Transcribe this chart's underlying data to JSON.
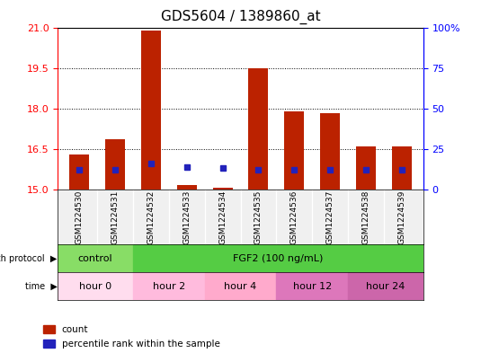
{
  "title": "GDS5604 / 1389860_at",
  "samples": [
    "GSM1224530",
    "GSM1224531",
    "GSM1224532",
    "GSM1224533",
    "GSM1224534",
    "GSM1224535",
    "GSM1224536",
    "GSM1224537",
    "GSM1224538",
    "GSM1224539"
  ],
  "count_values": [
    16.3,
    16.85,
    20.9,
    15.15,
    15.05,
    19.5,
    17.9,
    17.85,
    16.6,
    16.6
  ],
  "percentile_values": [
    15.2,
    15.2,
    15.55,
    15.45,
    15.4,
    15.25,
    15.2,
    15.25,
    15.2,
    15.2
  ],
  "blue_square_pct": [
    12,
    12,
    16,
    14,
    13,
    12,
    12,
    12,
    12,
    12
  ],
  "ylim_left": [
    15,
    21
  ],
  "yticks_left": [
    15,
    16.5,
    18,
    19.5,
    21
  ],
  "yticks_right": [
    0,
    25,
    50,
    75,
    100
  ],
  "bar_color": "#bb2200",
  "blue_color": "#2222bb",
  "growth_protocol_labels": [
    {
      "label": "control",
      "start": 0,
      "end": 2,
      "color": "#88dd66"
    },
    {
      "label": "FGF2 (100 ng/mL)",
      "start": 2,
      "end": 10,
      "color": "#66cc55"
    }
  ],
  "time_labels": [
    {
      "label": "hour 0",
      "start": 0,
      "end": 2,
      "color": "#ffccee"
    },
    {
      "label": "hour 2",
      "start": 2,
      "end": 4,
      "color": "#ffaadd"
    },
    {
      "label": "hour 4",
      "start": 4,
      "end": 6,
      "color": "#ff99cc"
    },
    {
      "label": "hour 12",
      "start": 6,
      "end": 8,
      "color": "#dd77bb"
    },
    {
      "label": "hour 24",
      "start": 8,
      "end": 10,
      "color": "#cc66aa"
    }
  ],
  "legend_count_label": "count",
  "legend_pct_label": "percentile rank within the sample",
  "bg_color": "#f0f0f0"
}
